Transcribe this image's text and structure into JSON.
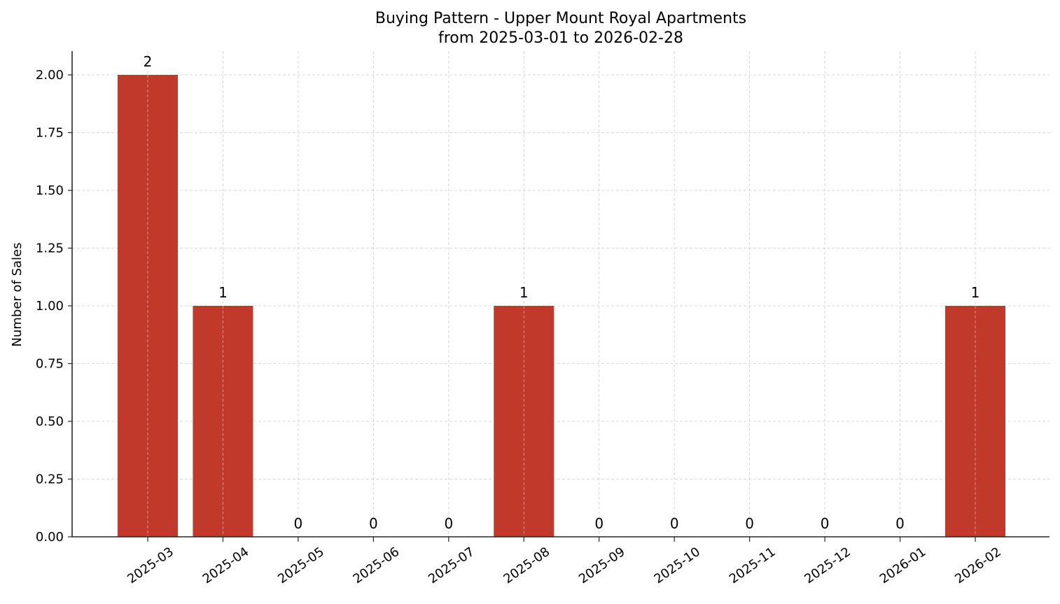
{
  "chart_data": {
    "type": "bar",
    "title": "Buying Pattern - Upper Mount Royal Apartments",
    "subtitle": "from 2025-03-01 to 2026-02-28",
    "xlabel": "",
    "ylabel": "Number of Sales",
    "categories": [
      "2025-03",
      "2025-04",
      "2025-05",
      "2025-06",
      "2025-07",
      "2025-08",
      "2025-09",
      "2025-10",
      "2025-11",
      "2025-12",
      "2026-01",
      "2026-02"
    ],
    "values": [
      2,
      1,
      0,
      0,
      0,
      1,
      0,
      0,
      0,
      0,
      0,
      1
    ],
    "bar_labels": [
      "2",
      "1",
      "0",
      "0",
      "0",
      "1",
      "0",
      "0",
      "0",
      "0",
      "0",
      "1"
    ],
    "ylim": [
      0,
      2.1
    ],
    "yticks": [
      0,
      0.25,
      0.5,
      0.75,
      1.0,
      1.25,
      1.5,
      1.75,
      2.0
    ],
    "ytick_labels": [
      "0.00",
      "0.25",
      "0.50",
      "0.75",
      "1.00",
      "1.25",
      "1.50",
      "1.75",
      "2.00"
    ],
    "grid": true,
    "grid_style": "dashed",
    "legend": null,
    "bar_color": "#c0392b",
    "xtick_rotation": 35
  }
}
